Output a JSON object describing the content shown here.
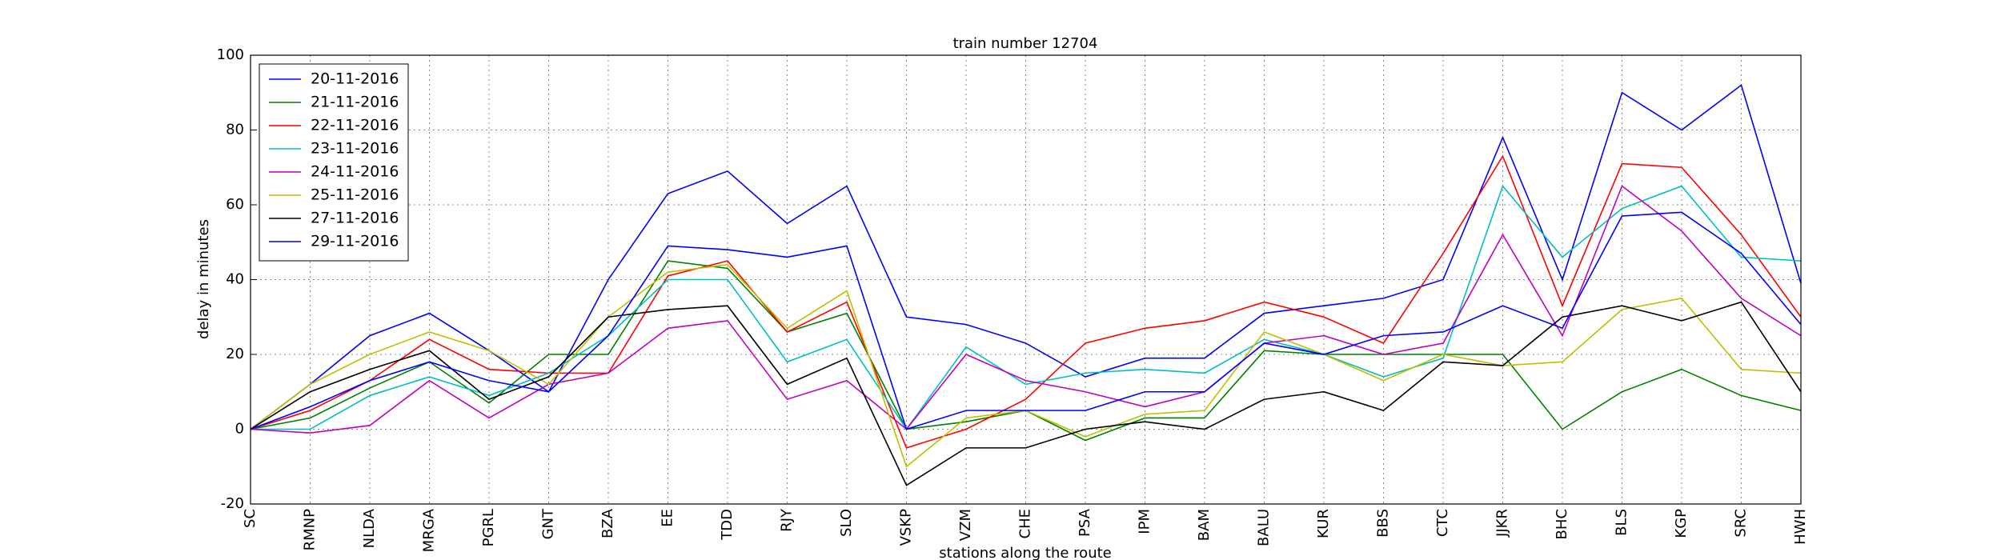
{
  "chart_data": {
    "type": "line",
    "title": "train number 12704",
    "y_label": "delay in minutes",
    "x_label": "stations along the route",
    "categories": [
      "SC",
      "RMNP",
      "NLDA",
      "MRGA",
      "PGRL",
      "GNT",
      "BZA",
      "EE",
      "TDD",
      "RJY",
      "SLO",
      "VSKP",
      "VZM",
      "CHE",
      "PSA",
      "IPM",
      "BAM",
      "BALU",
      "KUR",
      "BBS",
      "CTC",
      "JJKR",
      "BHC",
      "BLS",
      "KGP",
      "SRC",
      "HWH"
    ],
    "series": [
      {
        "name": "20-11-2016",
        "color": "#0000ff",
        "values": [
          0,
          12,
          25,
          31,
          21,
          10,
          40,
          63,
          69,
          55,
          65,
          30,
          28,
          23,
          14,
          19,
          19,
          31,
          33,
          35,
          40,
          78,
          40,
          90,
          80,
          92,
          39
        ]
      },
      {
        "name": "21-11-2016",
        "color": "#008000",
        "values": [
          0,
          3,
          11,
          18,
          7,
          20,
          20,
          45,
          43,
          26,
          31,
          0,
          2,
          5,
          -3,
          3,
          3,
          21,
          20,
          20,
          20,
          20,
          0,
          10,
          16,
          9,
          5
        ]
      },
      {
        "name": "22-11-2016",
        "color": "#ff0000",
        "values": [
          0,
          5,
          13,
          24,
          16,
          15,
          15,
          41,
          45,
          26,
          34,
          -5,
          0,
          8,
          23,
          27,
          29,
          34,
          30,
          23,
          47,
          73,
          33,
          71,
          70,
          52,
          30
        ]
      },
      {
        "name": "23-11-2016",
        "color": "#00bfbf",
        "values": [
          0,
          0,
          9,
          14,
          9,
          15,
          25,
          40,
          40,
          18,
          24,
          0,
          22,
          12,
          15,
          16,
          15,
          24,
          20,
          14,
          19,
          65,
          46,
          59,
          65,
          46,
          45
        ]
      },
      {
        "name": "24-11-2016",
        "color": "#bf00bf",
        "values": [
          0,
          -1,
          1,
          13,
          3,
          12,
          15,
          27,
          29,
          8,
          13,
          0,
          20,
          13,
          10,
          6,
          10,
          23,
          25,
          20,
          23,
          52,
          25,
          65,
          53,
          35,
          25
        ]
      },
      {
        "name": "25-11-2016",
        "color": "#bfbf00",
        "values": [
          0,
          12,
          20,
          26,
          21,
          12,
          30,
          42,
          44,
          27,
          37,
          -10,
          3,
          5,
          -2,
          4,
          5,
          26,
          20,
          13,
          20,
          17,
          18,
          32,
          35,
          16,
          15
        ]
      },
      {
        "name": "27-11-2016",
        "color": "#000000",
        "values": [
          0,
          10,
          16,
          21,
          8,
          14,
          30,
          32,
          33,
          12,
          19,
          -15,
          -5,
          -5,
          0,
          2,
          0,
          8,
          10,
          5,
          18,
          17,
          30,
          33,
          29,
          34,
          10
        ]
      },
      {
        "name": "29-11-2016",
        "color": "#0000ff",
        "values": [
          0,
          6,
          13,
          18,
          13,
          10,
          25,
          49,
          48,
          46,
          49,
          0,
          5,
          5,
          5,
          10,
          10,
          23,
          20,
          25,
          26,
          33,
          27,
          57,
          58,
          47,
          28
        ]
      }
    ],
    "ylim": [
      -20,
      100
    ],
    "yticks": [
      -20,
      0,
      20,
      40,
      60,
      80,
      100
    ],
    "grid": true,
    "legend": "upper left"
  }
}
